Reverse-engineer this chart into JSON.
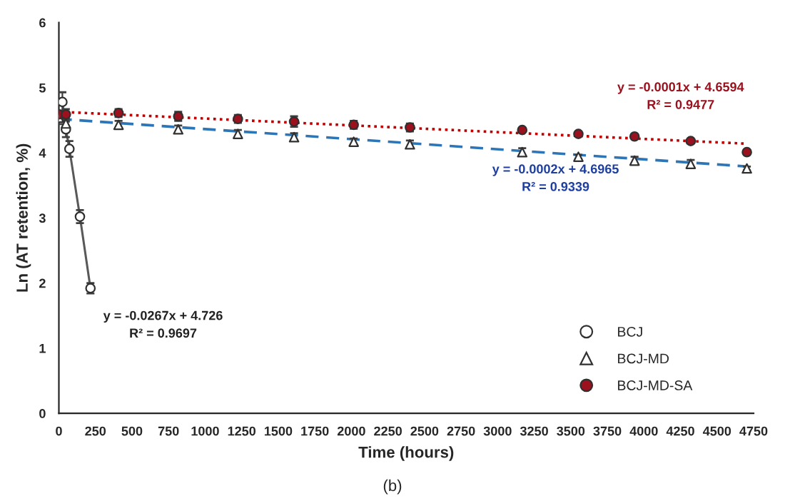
{
  "chart_data": {
    "type": "scatter",
    "title": "(b)",
    "xlabel": "Time (hours)",
    "ylabel": "Ln (AT retention, %)",
    "xlim": [
      0,
      4750
    ],
    "xticks": [
      0,
      250,
      500,
      750,
      1000,
      1250,
      1500,
      1750,
      2000,
      2250,
      2500,
      2750,
      3000,
      3250,
      3500,
      3750,
      4000,
      4250,
      4500,
      4750
    ],
    "ylim": [
      0,
      6
    ],
    "yticks": [
      0,
      1,
      2,
      3,
      4,
      5,
      6
    ],
    "grid": false,
    "legend": "bottom right",
    "series": [
      {
        "type": "line",
        "color": "#2e75b6",
        "line_style": "dashed",
        "marker": "none",
        "x": [
          0,
          4704
        ],
        "values": [
          4.52,
          3.79
        ]
      },
      {
        "type": "line",
        "color": "#c00000",
        "line_style": "dotted",
        "marker": "none",
        "x": [
          0,
          4704
        ],
        "values": [
          4.63,
          4.14
        ]
      },
      {
        "type": "line",
        "name": "BCJ",
        "color": "#ffffff",
        "line_style": "solid",
        "marker": "circle",
        "x": [
          24,
          48,
          72,
          144,
          216
        ],
        "values": [
          4.78,
          4.36,
          4.06,
          3.02,
          1.92
        ],
        "errors": [
          0.15,
          0.12,
          0.12,
          0.1,
          0.08
        ]
      },
      {
        "name": "BCJ-MD",
        "color": "#ffffff",
        "marker": "triangle",
        "x": [
          0,
          48,
          408,
          816,
          1224,
          1608,
          2016,
          2400,
          3168,
          3552,
          3936,
          4320,
          4704
        ],
        "values": [
          4.54,
          4.45,
          4.43,
          4.36,
          4.29,
          4.24,
          4.17,
          4.13,
          4.01,
          3.94,
          3.88,
          3.83,
          3.76
        ],
        "errors": [
          0.1,
          0.08,
          0.06,
          0.06,
          0.06,
          0.06,
          0.05,
          0.06,
          0.06,
          0.03,
          0.06,
          0.06,
          0.03
        ]
      },
      {
        "name": "BCJ-MD-SA",
        "color": "#9b111e",
        "marker": "circle",
        "x": [
          0,
          48,
          408,
          816,
          1224,
          1608,
          2016,
          2400,
          3168,
          3552,
          3936,
          4320,
          4704
        ],
        "values": [
          4.59,
          4.59,
          4.61,
          4.56,
          4.52,
          4.48,
          4.43,
          4.39,
          4.35,
          4.29,
          4.25,
          4.18,
          4.01
        ],
        "errors": [
          0.06,
          0.08,
          0.06,
          0.07,
          0.06,
          0.08,
          0.06,
          0.06,
          0.02,
          0.02,
          0.02,
          0.02,
          0.02
        ]
      }
    ],
    "annotations": [
      "y = -0.0267x + 4.726\nR² = 0.9697",
      "y = -0.0001x + 4.6594\nR² = 0.9477",
      "y = -0.0002x + 4.6965\nR² = 0.9339"
    ]
  }
}
